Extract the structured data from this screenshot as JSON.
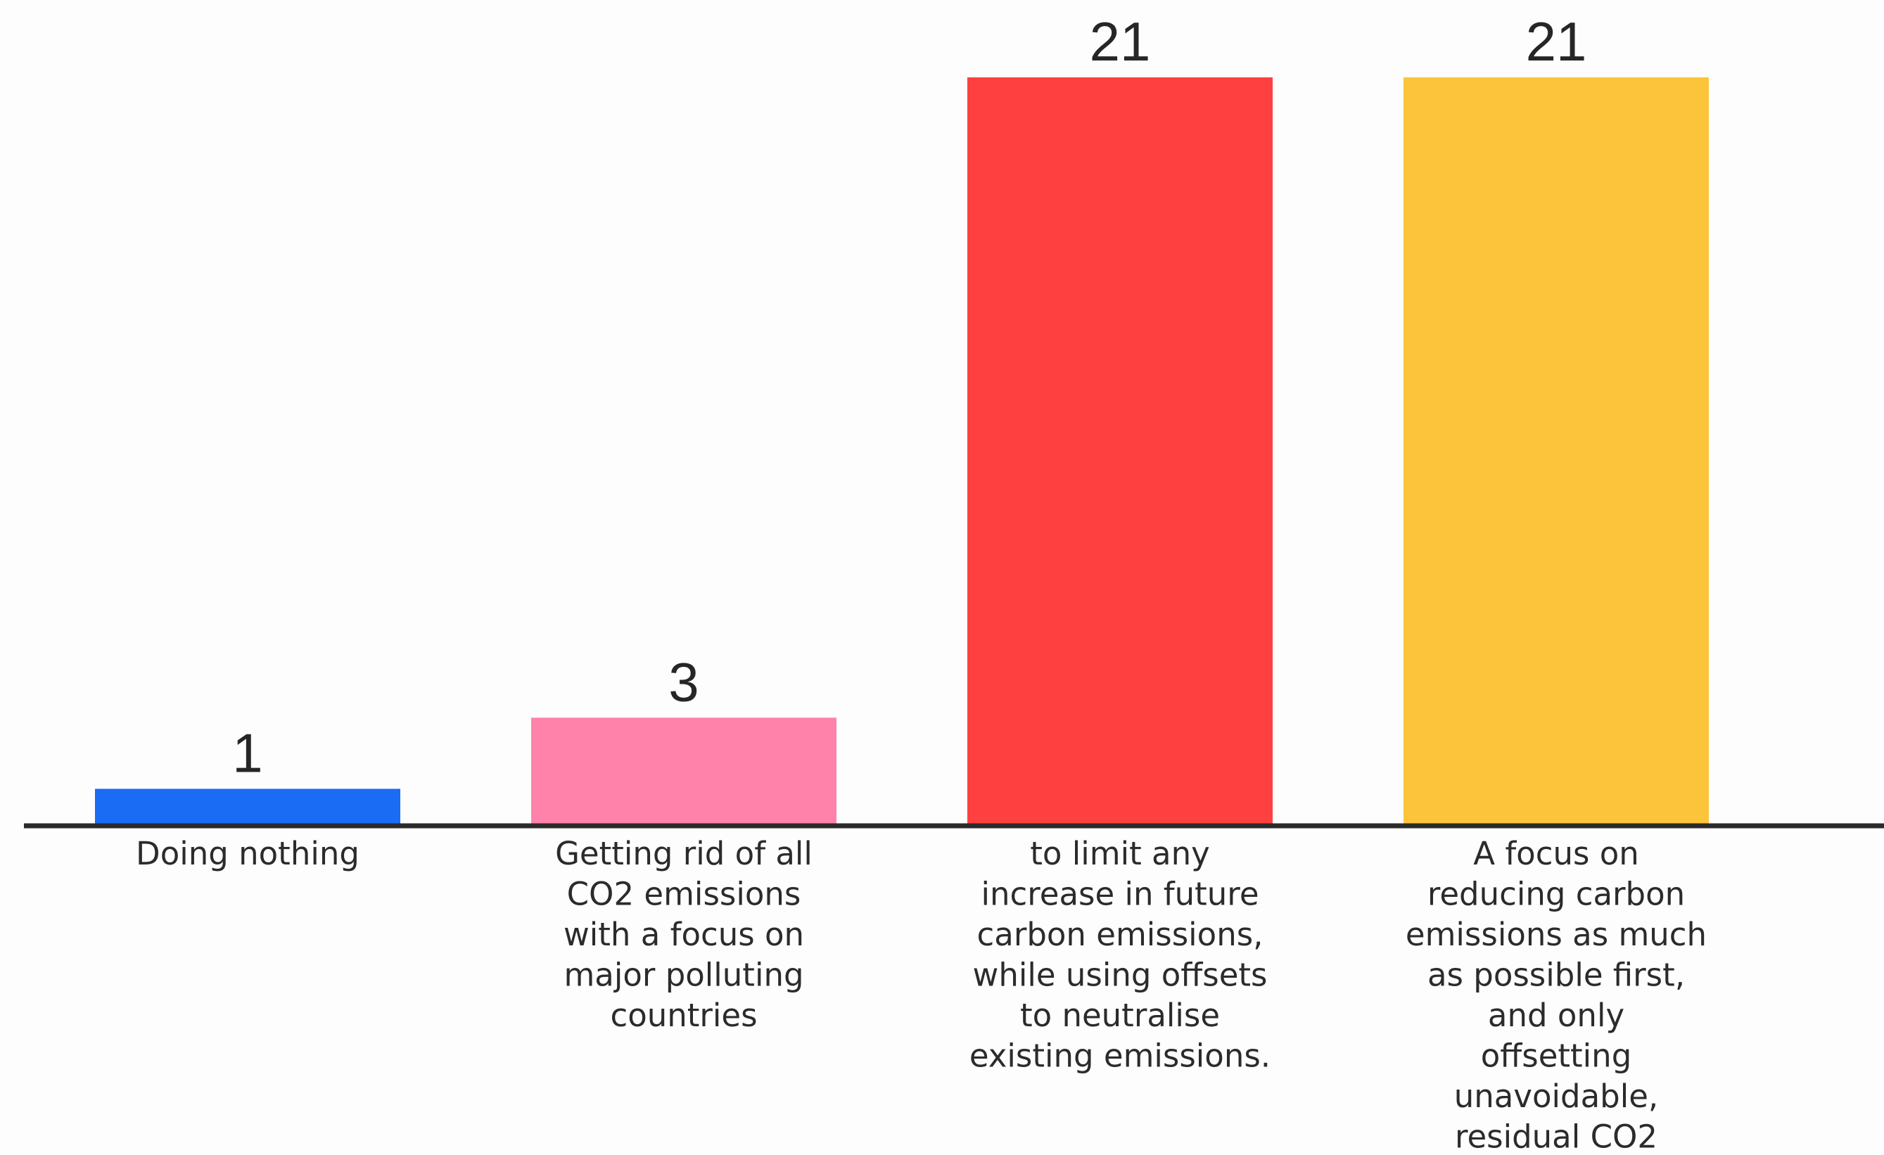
{
  "chart_data": {
    "type": "bar",
    "categories": [
      "Doing nothing",
      "Getting rid of all CO2 emissions with a focus on major polluting countries",
      "to limit any increase in future carbon emissions, while using offsets to neutralise existing emissions.",
      "A focus on reducing carbon emissions as much as possible first, and only offsetting unavoidable, residual CO2"
    ],
    "category_lines": [
      [
        "Doing nothing"
      ],
      [
        "Getting rid of all",
        "CO2 emissions",
        "with a focus on",
        "major polluting",
        "countries"
      ],
      [
        "to limit any",
        "increase in future",
        "carbon emissions,",
        "while using offsets",
        "to neutralise",
        "existing emissions."
      ],
      [
        "A focus on",
        "reducing carbon",
        "emissions as much",
        "as possible first,",
        "and only",
        "offsetting",
        "unavoidable,",
        "residual CO2"
      ]
    ],
    "values": [
      1,
      3,
      21,
      21
    ],
    "value_labels": [
      "1",
      "3",
      "21",
      "21"
    ],
    "colors": [
      "#1a6cf5",
      "#ff82ab",
      "#ff4040",
      "#fcc43a"
    ],
    "axis_color": "#2a2a2a",
    "ylim": [
      0,
      21
    ],
    "grid": false,
    "legend": "none",
    "title": "",
    "xlabel": "",
    "ylabel": ""
  }
}
